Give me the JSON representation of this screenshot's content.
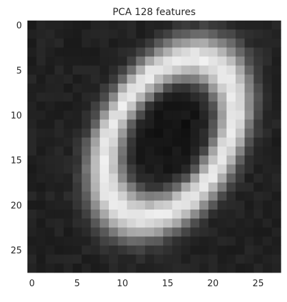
{
  "chart_data": {
    "type": "heatmap",
    "title": "PCA 128 features",
    "xlabel": "",
    "ylabel": "",
    "xlim": [
      -0.5,
      27.5
    ],
    "ylim": [
      27.5,
      -0.5
    ],
    "x_ticks": [
      "0",
      "5",
      "10",
      "15",
      "20",
      "25"
    ],
    "y_ticks": [
      "0",
      "5",
      "10",
      "15",
      "20",
      "25"
    ],
    "colormap": "gray",
    "grid": false,
    "value_range": [
      0,
      1
    ],
    "grid_size": [
      28,
      28
    ],
    "shape": "ellipse ring reconstruction of handwritten digit zero",
    "ring": {
      "center_x": 15.2,
      "center_y": 12.5,
      "radius_x": 6.2,
      "radius_y": 9.6,
      "rotation_deg": 30,
      "stroke_width": 1.6,
      "peak_value": 0.92,
      "background_value": 0.13
    }
  }
}
